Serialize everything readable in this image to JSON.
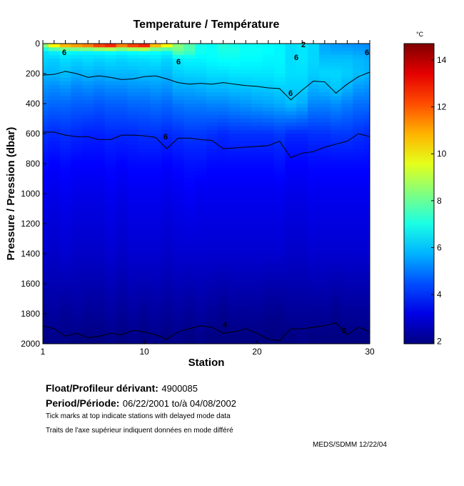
{
  "chart_data": {
    "type": "heatmap",
    "title": "Temperature / Température",
    "xlabel": "Station",
    "ylabel": "Pressure / Pression (dbar)",
    "xlim": [
      1,
      30
    ],
    "ylim": [
      2000,
      0
    ],
    "xticks": [
      "1",
      "10",
      "20",
      "30"
    ],
    "yticks": [
      "0",
      "200",
      "400",
      "600",
      "800",
      "1000",
      "1200",
      "1400",
      "1600",
      "1800",
      "2000"
    ],
    "colorbar": {
      "unit": "°C",
      "range": [
        1.9,
        14.7
      ],
      "ticks": [
        "2",
        "4",
        "6",
        "8",
        "10",
        "12",
        "14"
      ]
    },
    "pressure_levels": [
      0,
      50,
      100,
      200,
      300,
      400,
      600,
      800,
      1000,
      1400,
      1800,
      2000
    ],
    "temperature_profiles": [
      [
        9.0,
        6.4,
        6.2,
        5.8,
        5.3,
        4.9,
        4.1,
        3.6,
        3.3,
        2.9,
        2.2,
        1.9
      ],
      [
        11.0,
        6.6,
        6.1,
        5.8,
        5.2,
        4.8,
        4.0,
        3.5,
        3.2,
        2.8,
        2.3,
        2.0
      ],
      [
        12.0,
        6.8,
        6.3,
        5.9,
        5.3,
        4.8,
        4.1,
        3.6,
        3.3,
        2.9,
        2.2,
        2.0
      ],
      [
        12.5,
        6.7,
        6.2,
        5.7,
        5.1,
        4.7,
        4.0,
        3.5,
        3.2,
        2.8,
        2.3,
        1.9
      ],
      [
        13.0,
        6.6,
        6.3,
        5.8,
        5.2,
        4.7,
        3.9,
        3.5,
        3.2,
        2.8,
        2.2,
        1.9
      ],
      [
        14.0,
        6.7,
        6.2,
        5.7,
        5.1,
        4.6,
        3.9,
        3.5,
        3.2,
        2.8,
        2.2,
        1.9
      ],
      [
        14.5,
        6.8,
        6.3,
        5.8,
        5.2,
        4.7,
        4.0,
        3.6,
        3.3,
        2.9,
        2.3,
        2.0
      ],
      [
        13.0,
        6.7,
        6.2,
        5.8,
        5.2,
        4.7,
        4.0,
        3.5,
        3.2,
        2.8,
        2.2,
        1.9
      ],
      [
        14.0,
        6.8,
        6.3,
        5.8,
        5.3,
        4.8,
        4.0,
        3.6,
        3.3,
        2.9,
        2.3,
        2.0
      ],
      [
        14.5,
        6.9,
        6.3,
        5.9,
        5.3,
        4.8,
        4.1,
        3.6,
        3.3,
        2.9,
        2.2,
        1.9
      ],
      [
        12.0,
        6.8,
        6.4,
        5.9,
        5.4,
        4.9,
        4.1,
        3.6,
        3.3,
        2.9,
        2.3,
        2.0
      ],
      [
        11.0,
        6.7,
        6.2,
        5.8,
        5.3,
        4.8,
        4.0,
        3.5,
        3.2,
        2.8,
        2.2,
        1.9
      ],
      [
        8.5,
        8.0,
        6.5,
        6.1,
        5.6,
        5.0,
        4.1,
        3.6,
        3.3,
        2.9,
        2.3,
        2.0
      ],
      [
        7.8,
        7.6,
        6.6,
        6.2,
        5.6,
        5.1,
        4.2,
        3.7,
        3.4,
        2.9,
        2.2,
        1.9
      ],
      [
        7.0,
        6.9,
        6.6,
        6.2,
        5.7,
        5.1,
        4.2,
        3.7,
        3.3,
        2.9,
        2.3,
        2.0
      ],
      [
        6.8,
        6.8,
        6.7,
        6.3,
        5.8,
        5.2,
        4.1,
        3.6,
        3.3,
        2.9,
        2.2,
        1.9
      ],
      [
        7.2,
        7.0,
        6.8,
        6.3,
        5.8,
        5.2,
        4.0,
        3.6,
        3.3,
        2.9,
        2.1,
        1.9
      ],
      [
        7.0,
        7.0,
        6.8,
        6.4,
        5.9,
        5.3,
        4.1,
        3.6,
        3.3,
        2.9,
        2.2,
        1.9
      ],
      [
        6.8,
        6.8,
        6.7,
        6.4,
        5.9,
        5.4,
        4.1,
        3.6,
        3.3,
        2.9,
        2.2,
        1.9
      ],
      [
        6.8,
        6.8,
        6.7,
        6.4,
        6.0,
        5.5,
        4.1,
        3.6,
        3.3,
        2.9,
        2.2,
        1.9
      ],
      [
        6.7,
        6.7,
        6.6,
        6.4,
        6.0,
        5.6,
        4.1,
        3.6,
        3.3,
        2.9,
        2.1,
        1.9
      ],
      [
        6.6,
        6.6,
        6.6,
        6.5,
        6.1,
        5.7,
        4.2,
        3.7,
        3.3,
        2.9,
        2.1,
        1.9
      ],
      [
        6.3,
        6.3,
        6.3,
        6.3,
        6.1,
        5.9,
        4.0,
        3.5,
        3.2,
        2.8,
        2.2,
        1.9
      ],
      [
        6.4,
        6.4,
        6.4,
        6.3,
        6.1,
        5.7,
        4.0,
        3.5,
        3.2,
        2.8,
        2.2,
        2.0
      ],
      [
        6.2,
        6.2,
        6.2,
        6.1,
        5.7,
        5.2,
        4.1,
        3.6,
        3.3,
        2.9,
        2.2,
        1.9
      ],
      [
        5.6,
        5.7,
        5.9,
        6.2,
        5.8,
        5.2,
        4.1,
        3.6,
        3.3,
        2.9,
        2.2,
        1.9
      ],
      [
        5.4,
        5.6,
        5.9,
        6.2,
        6.0,
        5.3,
        4.2,
        3.6,
        3.3,
        2.9,
        2.1,
        1.9
      ],
      [
        5.3,
        5.6,
        5.9,
        6.1,
        5.7,
        5.1,
        4.2,
        3.6,
        3.3,
        2.9,
        2.2,
        1.9
      ],
      [
        5.3,
        5.5,
        5.8,
        5.9,
        5.4,
        4.9,
        4.1,
        3.6,
        3.3,
        2.9,
        2.2,
        1.9
      ],
      [
        5.2,
        5.4,
        5.7,
        5.8,
        5.3,
        4.9,
        4.0,
        3.6,
        3.3,
        2.9,
        2.2,
        1.9
      ]
    ],
    "contours": [
      {
        "level": "6",
        "stations": [
          1,
          2,
          3,
          4,
          5,
          6,
          7,
          8,
          9,
          10,
          11,
          12,
          13,
          14,
          15,
          16,
          17,
          18,
          19,
          20,
          21,
          22,
          23,
          24,
          25,
          26,
          27,
          28,
          29,
          30
        ],
        "pressures": [
          210,
          205,
          185,
          200,
          225,
          215,
          225,
          240,
          235,
          220,
          215,
          235,
          260,
          270,
          265,
          270,
          260,
          270,
          280,
          285,
          295,
          300,
          375,
          310,
          250,
          255,
          330,
          270,
          220,
          190
        ]
      },
      {
        "level": "4",
        "stations": [
          1,
          2,
          3,
          4,
          5,
          6,
          7,
          8,
          9,
          10,
          11,
          12,
          13,
          14,
          15,
          16,
          17,
          18,
          19,
          20,
          21,
          22,
          23,
          24,
          25,
          26,
          27,
          28,
          29,
          30
        ],
        "pressures": [
          590,
          590,
          610,
          620,
          620,
          640,
          640,
          610,
          610,
          615,
          625,
          700,
          630,
          630,
          640,
          645,
          700,
          695,
          690,
          685,
          680,
          650,
          760,
          730,
          720,
          690,
          670,
          650,
          600,
          620
        ]
      },
      {
        "level": "2",
        "stations": [
          1,
          2,
          3,
          4,
          5,
          6,
          7,
          8,
          9,
          10,
          11,
          12,
          13,
          14,
          15,
          16,
          17,
          18,
          19,
          20,
          21,
          22,
          23,
          24,
          25,
          26,
          27,
          28,
          29,
          30
        ],
        "pressures": [
          1880,
          1900,
          1950,
          1930,
          1960,
          1950,
          1930,
          1940,
          1910,
          1920,
          1940,
          1970,
          1920,
          1900,
          1880,
          1890,
          1930,
          1920,
          1900,
          1930,
          1970,
          1980,
          1900,
          1900,
          1890,
          1880,
          1860,
          1940,
          1890,
          1920
        ]
      }
    ],
    "contour_labels": [
      "6",
      "6",
      "6",
      "6",
      "6",
      "6",
      "4",
      "2",
      "2"
    ]
  },
  "info": {
    "float_label": "Float/Profileur dérivant:",
    "float_value": "4900085",
    "period_label": "Period/Période:",
    "period_value": "06/22/2001  to/à  04/08/2002",
    "note_en": "Tick marks at top indicate stations with delayed mode data",
    "note_fr": "Traits de l'axe supérieur indiquent données en  mode différé",
    "credit": "MEDS/SDMM  12/22/04"
  }
}
